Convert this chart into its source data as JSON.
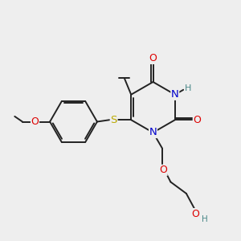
{
  "bg_color": "#eeeeee",
  "bond_color": "#222222",
  "atom_colors": {
    "O": "#dd0000",
    "N": "#0000cc",
    "S": "#bbaa00",
    "H": "#4a8888",
    "C": "#222222"
  },
  "font_size": 8.5,
  "figsize": [
    3.0,
    3.0
  ],
  "dpi": 100,
  "lw": 1.4
}
